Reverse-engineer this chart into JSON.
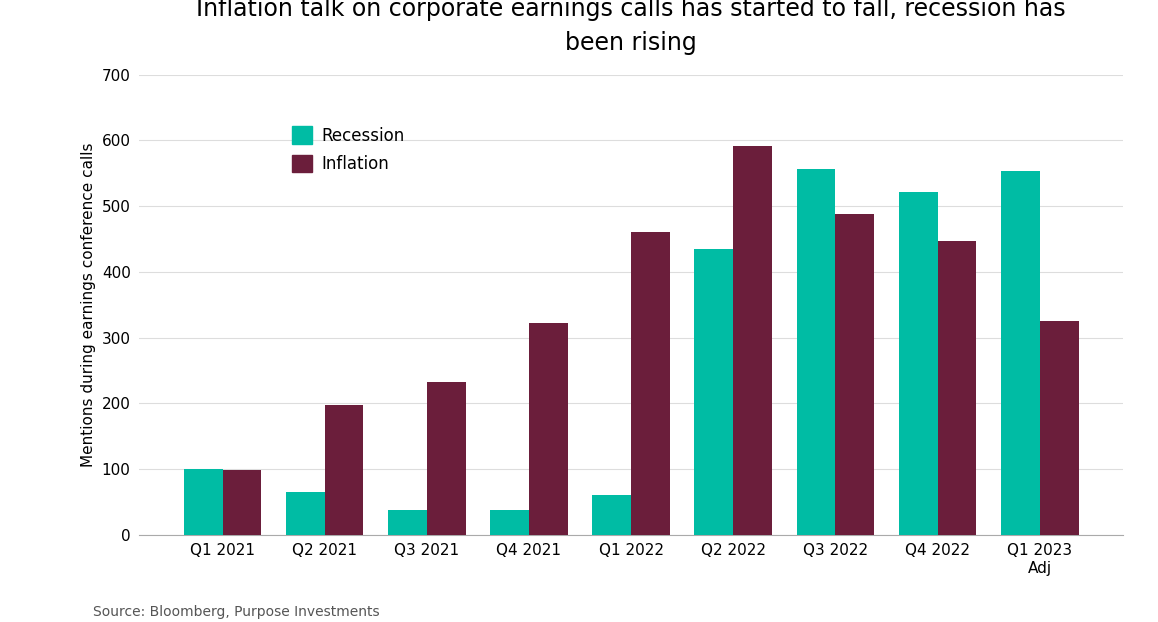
{
  "title": "Inflation talk on corporate earnings calls has started to fall, recession has\nbeen rising",
  "ylabel": "Mentions during earnings conference calls",
  "source": "Source: Bloomberg, Purpose Investments",
  "categories": [
    "Q1 2021",
    "Q2 2021",
    "Q3 2021",
    "Q4 2021",
    "Q1 2022",
    "Q2 2022",
    "Q3 2022",
    "Q4 2022",
    "Q1 2023\nAdj"
  ],
  "recession": [
    100,
    65,
    38,
    38,
    60,
    435,
    557,
    522,
    553
  ],
  "inflation": [
    98,
    197,
    232,
    322,
    460,
    592,
    488,
    447,
    325
  ],
  "recession_color": "#00BCA4",
  "inflation_color": "#6B1E3B",
  "ylim": [
    0,
    700
  ],
  "yticks": [
    0,
    100,
    200,
    300,
    400,
    500,
    600,
    700
  ],
  "title_fontsize": 17,
  "label_fontsize": 11,
  "tick_fontsize": 11,
  "legend_fontsize": 12,
  "source_fontsize": 10,
  "background_color": "#ffffff",
  "bar_width": 0.38
}
